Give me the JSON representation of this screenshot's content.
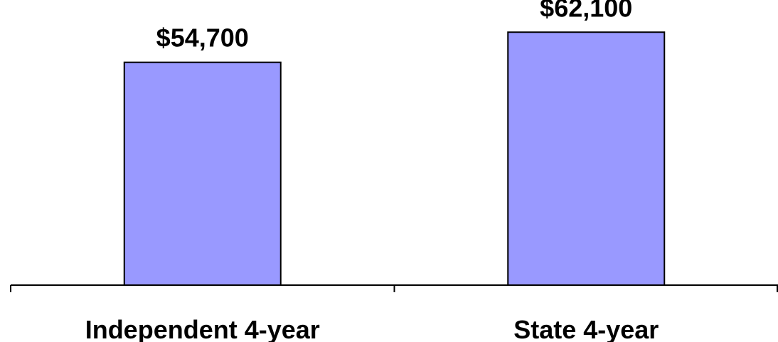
{
  "chart_data": {
    "type": "bar",
    "categories": [
      "Independent 4-year",
      "State 4-year"
    ],
    "values": [
      54700,
      62100
    ],
    "data_labels": [
      "$54,700",
      "$62,100"
    ],
    "title": "",
    "xlabel": "",
    "ylabel": "",
    "ylim": [
      0,
      70000
    ],
    "grid": false,
    "legend": "none",
    "colors": {
      "bar_fill": "#9999ff",
      "bar_stroke": "#000000",
      "axis": "#000000",
      "text": "#000000"
    }
  }
}
